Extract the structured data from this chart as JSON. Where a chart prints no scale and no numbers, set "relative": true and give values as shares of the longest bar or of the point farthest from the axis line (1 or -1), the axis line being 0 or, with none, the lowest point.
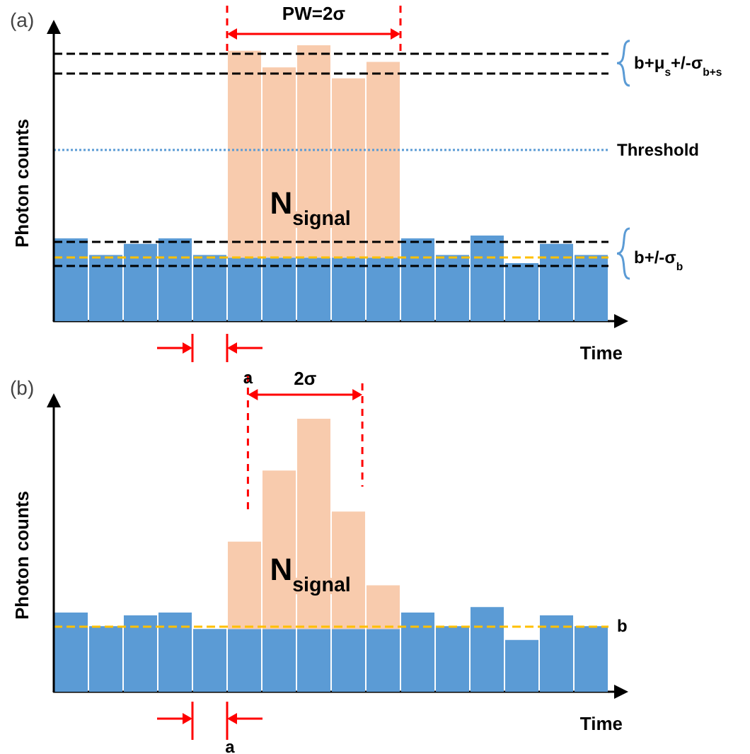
{
  "chart_data": [
    {
      "type": "bar",
      "title": "(a)",
      "xlabel": "Time",
      "ylabel": "Photon counts",
      "relative": true,
      "stacked": true,
      "tick_labels": false,
      "categories": [
        null,
        null,
        null,
        null,
        null,
        null,
        null,
        null,
        null,
        null,
        null,
        null,
        null,
        null,
        null,
        null
      ],
      "series": [
        {
          "color": "#5b9bd5",
          "values": [
            0.3,
            0.24,
            0.28,
            0.3,
            0.24,
            0.23,
            0.23,
            0.23,
            0.23,
            0.23,
            0.3,
            0.24,
            0.31,
            0.21,
            0.28,
            0.24
          ]
        },
        {
          "color": "#f8cbad",
          "values": [
            null,
            null,
            null,
            null,
            null,
            0.75,
            0.69,
            0.77,
            0.65,
            0.71,
            null,
            null,
            null,
            null,
            null,
            null
          ]
        }
      ],
      "ref_lines": [
        {
          "axis": "y",
          "value": 0.97,
          "color": "#000000",
          "line_style": "dashed"
        },
        {
          "axis": "y",
          "value": 0.9,
          "color": "#000000",
          "line_style": "dashed"
        },
        {
          "axis": "y",
          "value": 0.62,
          "color": "#5b9bd5",
          "line_style": "dotted",
          "label": "Threshold"
        },
        {
          "axis": "y",
          "value": 0.29,
          "color": "#000000",
          "line_style": "dashed"
        },
        {
          "axis": "y",
          "value": 0.2,
          "color": "#000000",
          "line_style": "dashed"
        },
        {
          "axis": "y",
          "value": 0.23,
          "color": "#ffc000",
          "line_style": "dashed",
          "label": "b+/-σ$_{b}$"
        }
      ],
      "annotations": [
        "PW=2σ",
        "b+μ$_{s}$+/-σ$_{b+s}$",
        "N$_{signal}$"
      ]
    },
    {
      "type": "bar",
      "title": "(b)",
      "xlabel": "Time",
      "ylabel": "Photon counts",
      "relative": true,
      "stacked": true,
      "tick_labels": false,
      "categories": [
        null,
        null,
        null,
        null,
        null,
        null,
        null,
        null,
        null,
        null,
        null,
        null,
        null,
        null,
        null,
        null
      ],
      "series": [
        {
          "color": "#5b9bd5",
          "values": [
            0.29,
            0.24,
            0.28,
            0.29,
            0.23,
            0.23,
            0.23,
            0.23,
            0.23,
            0.23,
            0.29,
            0.24,
            0.31,
            0.19,
            0.28,
            0.24
          ]
        },
        {
          "color": "#f8cbad",
          "values": [
            null,
            null,
            null,
            null,
            null,
            0.32,
            0.58,
            0.77,
            0.43,
            0.16,
            null,
            null,
            null,
            null,
            null,
            null
          ]
        }
      ],
      "ref_lines": [
        {
          "axis": "y",
          "value": 0.24,
          "color": "#ffc000",
          "line_style": "dashed",
          "label": "b"
        }
      ],
      "annotations": [
        "a",
        "2σ",
        "N$_{signal}$",
        "a"
      ]
    }
  ]
}
